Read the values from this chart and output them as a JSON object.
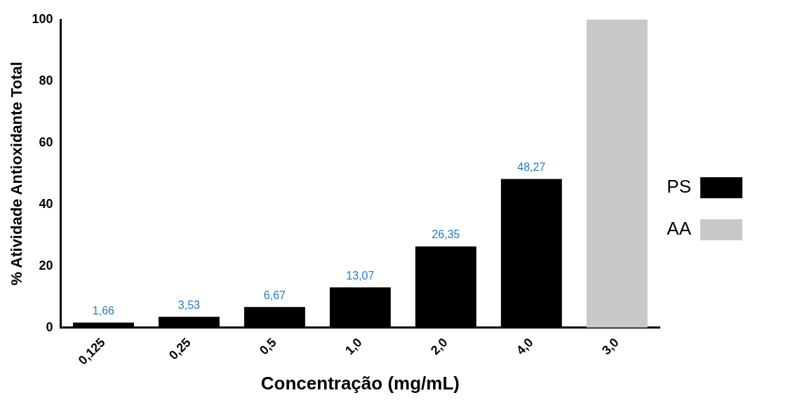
{
  "chart_data": {
    "type": "bar",
    "xlabel": "Concentração (mg/mL)",
    "ylabel": "% Atividade Antioxidante Total",
    "categories": [
      "0,125",
      "0,25",
      "0,5",
      "1,0",
      "2,0",
      "4,0",
      "3,0"
    ],
    "series": [
      {
        "name": "PS",
        "color": "#000000",
        "values": [
          1.66,
          3.53,
          6.67,
          13.07,
          26.35,
          48.27,
          null
        ],
        "value_labels": [
          "1,66",
          "3,53",
          "6,67",
          "13,07",
          "26,35",
          "48,27",
          null
        ]
      },
      {
        "name": "AA",
        "color": "#c8c8c8",
        "values": [
          null,
          null,
          null,
          null,
          null,
          null,
          100
        ]
      }
    ],
    "ylim": [
      0,
      100
    ],
    "yticks": [
      0,
      20,
      40,
      60,
      80,
      100
    ],
    "legend": "right",
    "grid": false
  }
}
